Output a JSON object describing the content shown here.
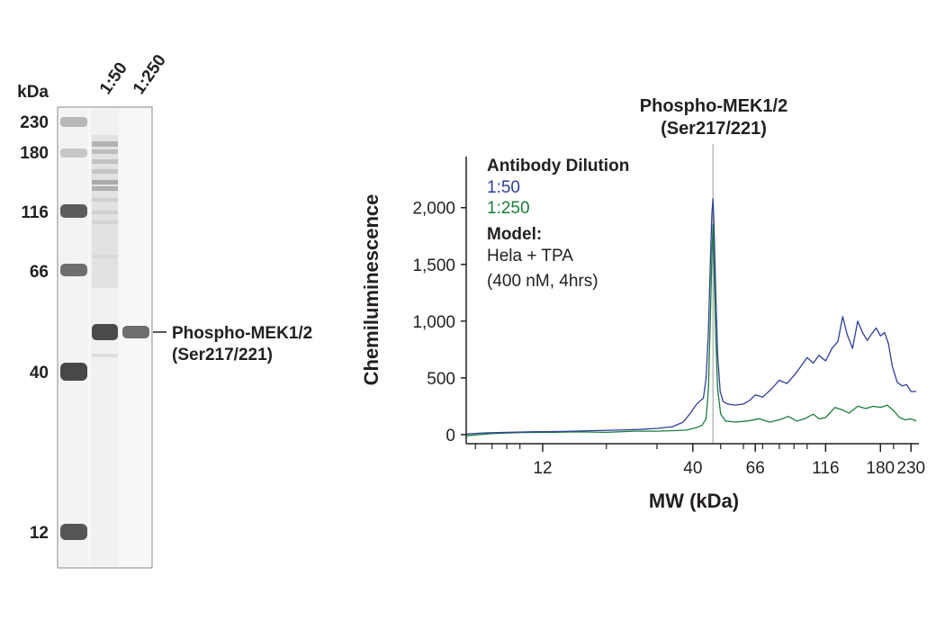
{
  "blot": {
    "unit_label": "kDa",
    "markers": [
      {
        "label": "230",
        "kda": 230
      },
      {
        "label": "180",
        "kda": 180
      },
      {
        "label": "116",
        "kda": 116
      },
      {
        "label": "66",
        "kda": 66
      },
      {
        "label": "40",
        "kda": 40
      },
      {
        "label": "12",
        "kda": 12
      }
    ],
    "lanes": [
      "1:50",
      "1:250"
    ],
    "band_label_line1": "Phospho-MEK1/2",
    "band_label_line2": "(Ser217/221)"
  },
  "chart_data": {
    "type": "line",
    "title_line1": "Phospho-MEK1/2",
    "title_line2": "(Ser217/221)",
    "xlabel": "MW (kDa)",
    "ylabel": "Chemiluminescence",
    "x_scale": "log",
    "xlim": [
      6.5,
      245
    ],
    "ylim": [
      -80,
      2450
    ],
    "x_ticks": [
      {
        "label": "12",
        "value": 12
      },
      {
        "label": "40",
        "value": 40
      },
      {
        "label": "66",
        "value": 66
      },
      {
        "label": "116",
        "value": 116
      },
      {
        "label": "180",
        "value": 180
      },
      {
        "label": "230",
        "value": 230
      }
    ],
    "y_ticks": [
      {
        "label": "0",
        "value": 0
      },
      {
        "label": "500",
        "value": 500
      },
      {
        "label": "1,000",
        "value": 1000
      },
      {
        "label": "1,500",
        "value": 1500
      },
      {
        "label": "2,000",
        "value": 2000
      }
    ],
    "reference_line_kda": 47,
    "legend": {
      "title": "Antibody Dilution",
      "model_title": "Model:",
      "model_line1": "Hela + TPA",
      "model_line2": "(400 nM, 4hrs)"
    },
    "series": [
      {
        "name": "1:50",
        "color": "#2e3f9a",
        "points": [
          [
            6.5,
            5
          ],
          [
            7.5,
            15
          ],
          [
            9,
            20
          ],
          [
            11,
            25
          ],
          [
            14,
            28
          ],
          [
            18,
            35
          ],
          [
            22,
            40
          ],
          [
            26,
            45
          ],
          [
            30,
            55
          ],
          [
            34,
            70
          ],
          [
            37,
            110
          ],
          [
            39,
            180
          ],
          [
            41,
            260
          ],
          [
            42.5,
            300
          ],
          [
            43.5,
            320
          ],
          [
            44.5,
            500
          ],
          [
            45.3,
            900
          ],
          [
            46,
            1500
          ],
          [
            46.6,
            1950
          ],
          [
            47,
            2080
          ],
          [
            47.4,
            1850
          ],
          [
            48,
            1300
          ],
          [
            48.8,
            700
          ],
          [
            49.8,
            380
          ],
          [
            51,
            290
          ],
          [
            53,
            270
          ],
          [
            56,
            260
          ],
          [
            60,
            270
          ],
          [
            63,
            300
          ],
          [
            66,
            350
          ],
          [
            70,
            330
          ],
          [
            75,
            400
          ],
          [
            80,
            480
          ],
          [
            85,
            450
          ],
          [
            90,
            520
          ],
          [
            95,
            600
          ],
          [
            100,
            680
          ],
          [
            105,
            630
          ],
          [
            110,
            700
          ],
          [
            116,
            650
          ],
          [
            122,
            760
          ],
          [
            128,
            820
          ],
          [
            133,
            1040
          ],
          [
            138,
            880
          ],
          [
            144,
            760
          ],
          [
            150,
            1000
          ],
          [
            156,
            900
          ],
          [
            162,
            830
          ],
          [
            168,
            890
          ],
          [
            174,
            940
          ],
          [
            180,
            870
          ],
          [
            186,
            900
          ],
          [
            192,
            800
          ],
          [
            198,
            600
          ],
          [
            206,
            460
          ],
          [
            214,
            430
          ],
          [
            222,
            440
          ],
          [
            230,
            380
          ],
          [
            240,
            380
          ]
        ]
      },
      {
        "name": "1:250",
        "color": "#1a7e3a",
        "points": [
          [
            6.5,
            -10
          ],
          [
            8,
            10
          ],
          [
            10,
            18
          ],
          [
            13,
            20
          ],
          [
            16,
            25
          ],
          [
            20,
            20
          ],
          [
            25,
            30
          ],
          [
            30,
            30
          ],
          [
            34,
            35
          ],
          [
            38,
            40
          ],
          [
            41,
            60
          ],
          [
            43,
            80
          ],
          [
            44.5,
            140
          ],
          [
            45.3,
            400
          ],
          [
            46,
            1000
          ],
          [
            46.6,
            1600
          ],
          [
            47,
            1850
          ],
          [
            47.4,
            1500
          ],
          [
            48,
            900
          ],
          [
            48.8,
            400
          ],
          [
            50,
            180
          ],
          [
            52,
            120
          ],
          [
            56,
            110
          ],
          [
            62,
            120
          ],
          [
            68,
            140
          ],
          [
            74,
            110
          ],
          [
            80,
            130
          ],
          [
            86,
            160
          ],
          [
            92,
            120
          ],
          [
            98,
            140
          ],
          [
            105,
            180
          ],
          [
            110,
            140
          ],
          [
            116,
            150
          ],
          [
            125,
            240
          ],
          [
            132,
            220
          ],
          [
            140,
            190
          ],
          [
            150,
            250
          ],
          [
            160,
            230
          ],
          [
            170,
            250
          ],
          [
            180,
            240
          ],
          [
            190,
            260
          ],
          [
            200,
            210
          ],
          [
            210,
            150
          ],
          [
            220,
            130
          ],
          [
            230,
            140
          ],
          [
            240,
            120
          ]
        ]
      }
    ]
  }
}
